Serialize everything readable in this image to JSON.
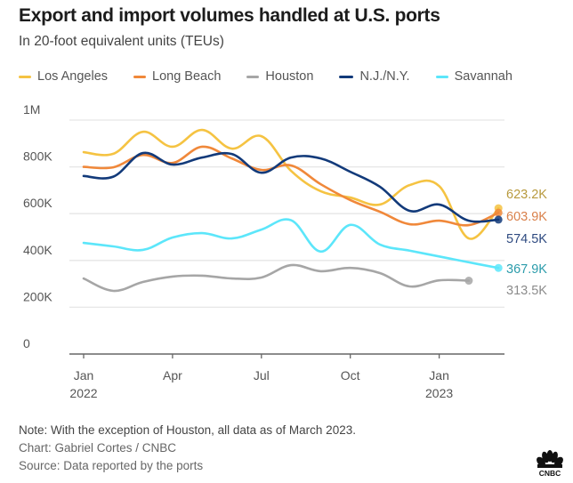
{
  "header": {
    "title": "Export and import volumes handled at U.S. ports",
    "subtitle": "In 20-foot equivalent units (TEUs)"
  },
  "legend": [
    {
      "name": "Los Angeles",
      "color": "#f5c342"
    },
    {
      "name": "Long Beach",
      "color": "#f0883a"
    },
    {
      "name": "Houston",
      "color": "#a6a6a6"
    },
    {
      "name": "N.J./N.Y.",
      "color": "#123a7a"
    },
    {
      "name": "Savannah",
      "color": "#5ce6fa"
    }
  ],
  "footer": {
    "note": "Note: With the exception of Houston, all data as of March 2023.",
    "credit": "Chart: Gabriel Cortes / CNBC",
    "source": "Source: Data reported by the ports",
    "logo": "cnbc-peacock-logo"
  },
  "chart_data": {
    "type": "line",
    "title": "Export and import volumes handled at U.S. ports",
    "subtitle": "In 20-foot equivalent units (TEUs)",
    "xlabel": "",
    "ylabel": "",
    "x": [
      "2022-01",
      "2022-02",
      "2022-03",
      "2022-04",
      "2022-05",
      "2022-06",
      "2022-07",
      "2022-08",
      "2022-09",
      "2022-10",
      "2022-11",
      "2022-12",
      "2023-01",
      "2023-02",
      "2023-03"
    ],
    "x_ticks": [
      {
        "x": "2022-01",
        "label": "Jan",
        "sublabel": "2022"
      },
      {
        "x": "2022-04",
        "label": "Apr",
        "sublabel": ""
      },
      {
        "x": "2022-07",
        "label": "Jul",
        "sublabel": ""
      },
      {
        "x": "2022-10",
        "label": "Oct",
        "sublabel": ""
      },
      {
        "x": "2023-01",
        "label": "Jan",
        "sublabel": "2023"
      }
    ],
    "y_ticks": [
      {
        "value": 0,
        "label": "0"
      },
      {
        "value": 200000,
        "label": "200K"
      },
      {
        "value": 400000,
        "label": "400K"
      },
      {
        "value": 600000,
        "label": "600K"
      },
      {
        "value": 800000,
        "label": "800K"
      },
      {
        "value": 1000000,
        "label": "1M"
      }
    ],
    "ylim": [
      0,
      1000000
    ],
    "grid": true,
    "legend_position": "top-left",
    "series": [
      {
        "name": "Los Angeles",
        "color": "#f5c342",
        "label_color": "#b89a3e",
        "end_label": "623.2K",
        "values": [
          863000,
          856000,
          950000,
          886000,
          958000,
          878000,
          931000,
          783000,
          696000,
          669000,
          639000,
          722000,
          718000,
          494000,
          623200
        ]
      },
      {
        "name": "Long Beach",
        "color": "#f0883a",
        "label_color": "#d9804a",
        "end_label": "603.9K",
        "values": [
          800000,
          798000,
          851000,
          817000,
          886000,
          836000,
          787000,
          806000,
          726000,
          658000,
          608000,
          555000,
          570000,
          551000,
          603900
        ]
      },
      {
        "name": "Houston",
        "color": "#a6a6a6",
        "label_color": "#8c8c8c",
        "end_label": "313.5K",
        "values": [
          323000,
          270000,
          308000,
          331000,
          335000,
          323000,
          327000,
          380000,
          354000,
          368000,
          346000,
          289000,
          315000,
          313500,
          null
        ]
      },
      {
        "name": "N.J./N.Y.",
        "color": "#123a7a",
        "label_color": "#2e4a80",
        "end_label": "574.5K",
        "values": [
          761000,
          758000,
          859000,
          810000,
          840000,
          855000,
          775000,
          840000,
          836000,
          779000,
          715000,
          612000,
          639000,
          570000,
          574500
        ]
      },
      {
        "name": "Savannah",
        "color": "#5ce6fa",
        "label_color": "#2c9cab",
        "end_label": "367.9K",
        "values": [
          475000,
          460000,
          445000,
          498000,
          517000,
          494000,
          532000,
          572000,
          438000,
          552000,
          468000,
          442000,
          417000,
          392000,
          367900
        ]
      }
    ]
  }
}
